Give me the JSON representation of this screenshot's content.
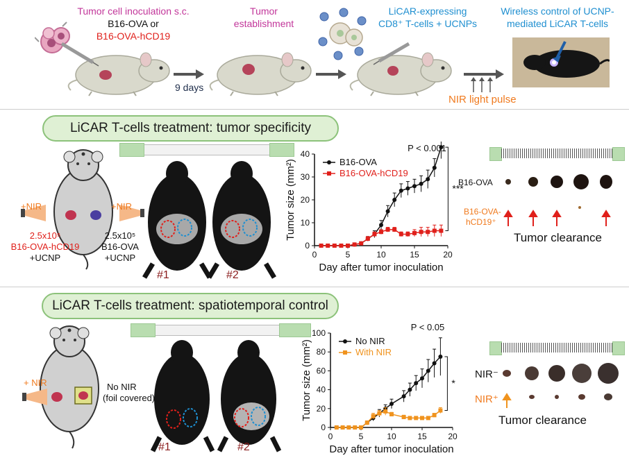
{
  "top": {
    "inoculation_title": "Tumor cell inoculation s.c.",
    "inoculation_line1": "B16-OVA or",
    "inoculation_line2": "B16-OVA-hCD19",
    "days": "9 days",
    "establishment_line1": "Tumor",
    "establishment_line2": "establishment",
    "licar_line1": "LiCAR-expressing",
    "licar_line2": "CD8⁺ T-cells + UCNPs",
    "wireless_line1": "Wireless control of UCNP-",
    "wireless_line2": "mediated LiCAR T-cells",
    "nir_pulse": "NIR light pulse"
  },
  "panel1": {
    "title": "LiCAR T-cells treatment: tumor specificity",
    "nir_left": "+NIR",
    "nir_right": "+NIR",
    "left_dose": "2.5x10⁵",
    "left_line": "B16-OVA-hCD19",
    "left_ucnp": "+UCNP",
    "right_dose": "2.5x10⁵",
    "right_line": "B16-OVA",
    "right_ucnp": "+UCNP",
    "mouse1": "#1",
    "mouse2": "#2",
    "tumor_row1": "B16-OVA",
    "tumor_row2a": "B16-OVA-",
    "tumor_row2b": "hCD19⁺",
    "clearance": "Tumor clearance"
  },
  "panel2": {
    "title": "LiCAR T-cells treatment: spatiotemporal control",
    "nir_left": "+ NIR",
    "no_nir": "No NIR",
    "foil": "(foil covered)",
    "mouse1": "#1",
    "mouse2": "#2",
    "row1": "NIR⁻",
    "row2": "NIR⁺",
    "clearance": "Tumor clearance"
  },
  "chart_data": [
    {
      "type": "line",
      "xlabel": "Day after tumor inoculation",
      "ylabel": "Tumor size (mm²)",
      "xlim": [
        0,
        20
      ],
      "ylim": [
        0,
        40
      ],
      "xticks": [
        0,
        5,
        10,
        15,
        20
      ],
      "yticks": [
        0,
        10,
        20,
        30,
        40
      ],
      "pvalue": "P < 0.001",
      "significance": "***",
      "legend_position": "top-left",
      "series": [
        {
          "name": "B16-OVA",
          "color": "#111111",
          "marker": "circle",
          "x": [
            1,
            2,
            3,
            4,
            5,
            6,
            7,
            8,
            9,
            10,
            11,
            12,
            13,
            14,
            15,
            16,
            17,
            18,
            19
          ],
          "y": [
            0,
            0,
            0,
            0,
            0,
            0.5,
            1,
            3,
            5,
            9,
            15,
            20,
            24,
            25,
            26,
            27,
            29,
            34,
            43
          ],
          "err": [
            0,
            0,
            0,
            0,
            0,
            0.5,
            0.5,
            1,
            1.5,
            2,
            2.5,
            3,
            3,
            3,
            3,
            3.5,
            4,
            4,
            5
          ]
        },
        {
          "name": "B16-OVA-hCD19",
          "color": "#e0201b",
          "marker": "square",
          "x": [
            1,
            2,
            3,
            4,
            5,
            6,
            7,
            8,
            9,
            10,
            11,
            12,
            13,
            14,
            15,
            16,
            17,
            18,
            19
          ],
          "y": [
            0,
            0,
            0,
            0,
            0,
            0.5,
            1,
            3,
            5,
            6,
            7,
            7,
            5,
            5,
            5.5,
            6,
            6,
            6.5,
            6.5
          ],
          "err": [
            0,
            0,
            0,
            0,
            0,
            0.3,
            0.5,
            1,
            1,
            1,
            1,
            1,
            1,
            1,
            1.5,
            2,
            2,
            2.5,
            2.5
          ]
        }
      ]
    },
    {
      "type": "line",
      "xlabel": "Day after tumor inoculation",
      "ylabel": "Tumor size (mm²)",
      "xlim": [
        0,
        20
      ],
      "ylim": [
        0,
        100
      ],
      "xticks": [
        0,
        5,
        10,
        15,
        20
      ],
      "yticks": [
        0,
        20,
        40,
        60,
        80,
        100
      ],
      "pvalue": "P < 0.05",
      "significance": "*",
      "legend_position": "top-left",
      "series": [
        {
          "name": "No NIR",
          "color": "#111111",
          "marker": "circle",
          "x": [
            1,
            2,
            3,
            4,
            5,
            6,
            7,
            8,
            9,
            10,
            12,
            13,
            14,
            15,
            16,
            17,
            18
          ],
          "y": [
            0,
            0,
            0,
            0,
            0,
            5,
            10,
            15,
            20,
            25,
            33,
            40,
            47,
            52,
            60,
            68,
            75
          ],
          "err": [
            0,
            0,
            0,
            0,
            0,
            2,
            3,
            4,
            4,
            5,
            6,
            7,
            8,
            10,
            12,
            15,
            20
          ]
        },
        {
          "name": "With NIR",
          "color": "#f0931e",
          "marker": "square",
          "x": [
            1,
            2,
            3,
            4,
            5,
            6,
            7,
            8,
            9,
            10,
            12,
            13,
            14,
            15,
            16,
            17,
            18
          ],
          "y": [
            0,
            0,
            0,
            0,
            0,
            5,
            12,
            15,
            17,
            14,
            11,
            10,
            10,
            10,
            10,
            13,
            18
          ],
          "err": [
            0,
            0,
            0,
            0,
            0,
            2,
            3,
            3,
            4,
            2,
            2,
            1,
            1,
            1,
            1,
            2,
            3
          ]
        }
      ]
    }
  ]
}
